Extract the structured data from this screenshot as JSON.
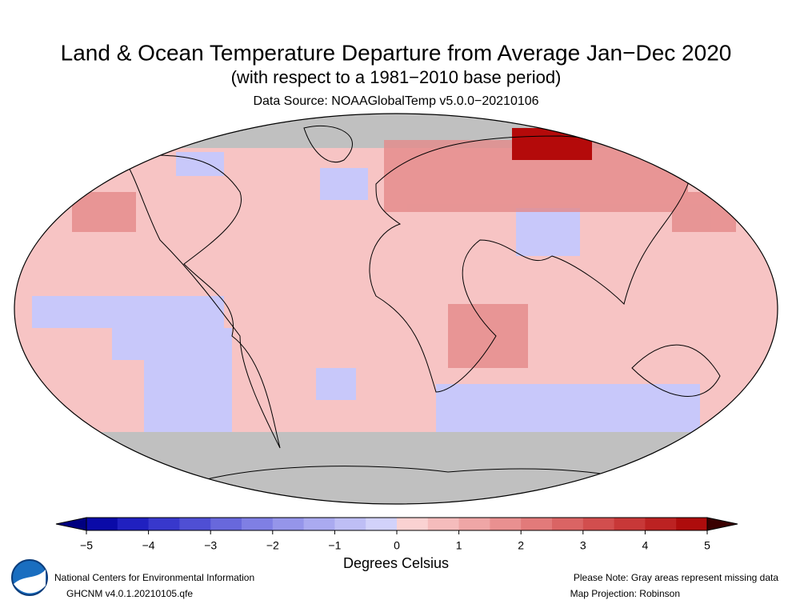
{
  "header": {
    "title": "Land & Ocean Temperature Departure from Average Jan−Dec 2020",
    "subtitle": "(with respect to a 1981−2010 base period)",
    "source": "Data Source: NOAAGlobalTemp v5.0.0−20210106"
  },
  "colorbar": {
    "lim": [
      -5,
      5
    ],
    "ticks": [
      {
        "value": -5,
        "label": "−5"
      },
      {
        "value": -4,
        "label": "−4"
      },
      {
        "value": -3,
        "label": "−3"
      },
      {
        "value": -2,
        "label": "−2"
      },
      {
        "value": -1,
        "label": "−1"
      },
      0,
      1,
      2,
      3,
      4,
      5
    ],
    "colors": [
      "#0a0aa8",
      "#2020c0",
      "#3838cc",
      "#4f4fd4",
      "#6868dc",
      "#7f7fe4",
      "#9595ea",
      "#aaaaf0",
      "#bebef5",
      "#d2d2fa",
      "#fad2d2",
      "#f5bcbc",
      "#efa6a6",
      "#e99090",
      "#e27a7a",
      "#da6464",
      "#d24e4e",
      "#c83838",
      "#bc2222",
      "#ae0c0c"
    ],
    "under_color": "#000080",
    "over_color": "#3a0000",
    "label": "Degrees Celsius"
  },
  "footer": {
    "org": "National Centers for Environmental Information",
    "version": "GHCNM v4.0.1.20210105.qfe",
    "note": "Please Note: Gray areas represent missing data",
    "projection": "Map Projection: Robinson"
  }
}
